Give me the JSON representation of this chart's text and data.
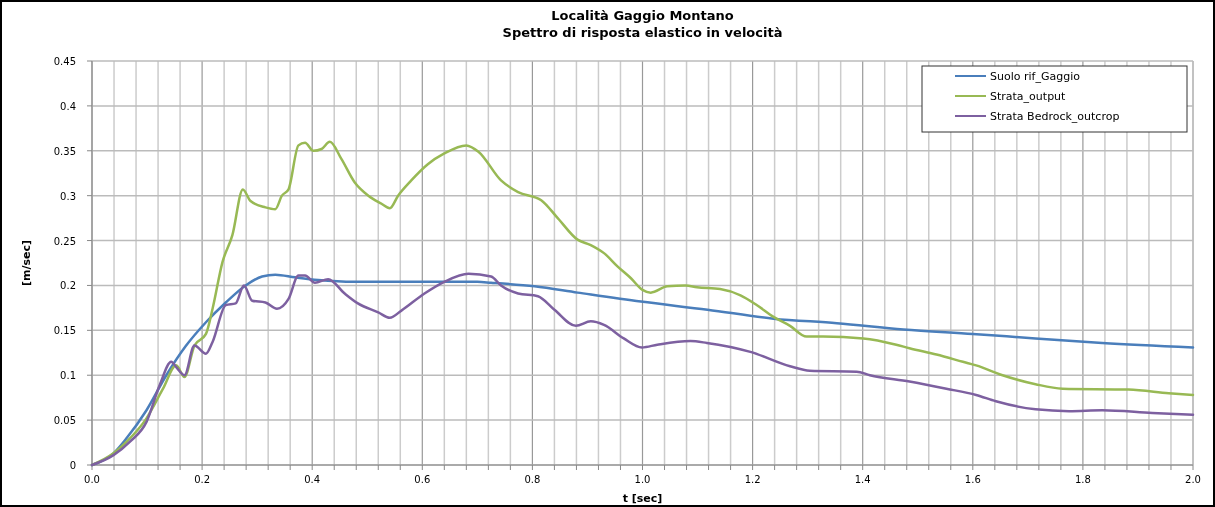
{
  "chart_data": {
    "type": "line",
    "title": "Località Gaggio Montano",
    "subtitle": "Spettro di risposta elastico in velocità",
    "xlabel": "t [sec]",
    "ylabel": "[m/sec]",
    "xlim": [
      0,
      2
    ],
    "ylim": [
      0,
      0.45
    ],
    "xticks": [
      {
        "value": 0,
        "label": "0.0"
      },
      {
        "value": 0.04,
        "label": null
      },
      {
        "value": 0.08,
        "label": null
      },
      {
        "value": 0.12,
        "label": null
      },
      {
        "value": 0.16,
        "label": null
      },
      {
        "value": 0.2,
        "label": "0.2"
      },
      {
        "value": 0.24,
        "label": null
      },
      {
        "value": 0.28,
        "label": null
      },
      {
        "value": 0.32,
        "label": null
      },
      {
        "value": 0.36,
        "label": null
      },
      {
        "value": 0.4,
        "label": "0.4"
      },
      {
        "value": 0.44,
        "label": null
      },
      {
        "value": 0.48,
        "label": null
      },
      {
        "value": 0.52,
        "label": null
      },
      {
        "value": 0.56,
        "label": null
      },
      {
        "value": 0.6,
        "label": "0.6"
      },
      {
        "value": 0.64,
        "label": null
      },
      {
        "value": 0.68,
        "label": null
      },
      {
        "value": 0.72,
        "label": null
      },
      {
        "value": 0.76,
        "label": null
      },
      {
        "value": 0.8,
        "label": "0.8"
      },
      {
        "value": 0.84,
        "label": null
      },
      {
        "value": 0.88,
        "label": null
      },
      {
        "value": 0.92,
        "label": null
      },
      {
        "value": 0.96,
        "label": null
      },
      {
        "value": 1,
        "label": "1.0"
      },
      {
        "value": 1.04,
        "label": null
      },
      {
        "value": 1.08,
        "label": null
      },
      {
        "value": 1.12,
        "label": null
      },
      {
        "value": 1.16,
        "label": null
      },
      {
        "value": 1.2,
        "label": "1.2"
      },
      {
        "value": 1.24,
        "label": null
      },
      {
        "value": 1.28,
        "label": null
      },
      {
        "value": 1.32,
        "label": null
      },
      {
        "value": 1.36,
        "label": null
      },
      {
        "value": 1.4,
        "label": "1.4"
      },
      {
        "value": 1.44,
        "label": null
      },
      {
        "value": 1.48,
        "label": null
      },
      {
        "value": 1.52,
        "label": null
      },
      {
        "value": 1.56,
        "label": null
      },
      {
        "value": 1.6,
        "label": "1.6"
      },
      {
        "value": 1.64,
        "label": null
      },
      {
        "value": 1.68,
        "label": null
      },
      {
        "value": 1.72,
        "label": null
      },
      {
        "value": 1.76,
        "label": null
      },
      {
        "value": 1.8,
        "label": "1.8"
      },
      {
        "value": 1.84,
        "label": null
      },
      {
        "value": 1.88,
        "label": null
      },
      {
        "value": 1.92,
        "label": null
      },
      {
        "value": 1.96,
        "label": null
      },
      {
        "value": 2,
        "label": "2.0"
      }
    ],
    "yticks": [
      0,
      0.05,
      0.1,
      0.15,
      0.2,
      0.25,
      0.3,
      0.35,
      0.4,
      0.45
    ],
    "grid": true,
    "legend": "top right",
    "marker": "none",
    "line_style": "solid",
    "series": [
      {
        "name": "Suolo  rif_Gaggio",
        "color": "#4a7ebb",
        "x": [
          0,
          0.039,
          0.063,
          0.099,
          0.135,
          0.171,
          0.207,
          0.243,
          0.279,
          0.309,
          0.333,
          0.369,
          0.411,
          0.477,
          0.58,
          0.7,
          0.725,
          0.804,
          0.882,
          0.997,
          1.118,
          1.238,
          1.353,
          1.474,
          1.6,
          1.714,
          1.835,
          2.0
        ],
        "values": [
          0,
          0.013,
          0.03,
          0.061,
          0.1,
          0.133,
          0.159,
          0.181,
          0.2,
          0.21,
          0.212,
          0.209,
          0.206,
          0.204,
          0.204,
          0.204,
          0.203,
          0.199,
          0.192,
          0.182,
          0.173,
          0.163,
          0.158,
          0.151,
          0.146,
          0.141,
          0.136,
          0.131
        ]
      },
      {
        "name": "Strata_output",
        "color": "#98b954",
        "x": [
          0,
          0.039,
          0.063,
          0.099,
          0.129,
          0.153,
          0.168,
          0.186,
          0.207,
          0.219,
          0.237,
          0.255,
          0.274,
          0.288,
          0.315,
          0.333,
          0.345,
          0.357,
          0.375,
          0.387,
          0.402,
          0.417,
          0.432,
          0.453,
          0.477,
          0.502,
          0.526,
          0.541,
          0.556,
          0.58,
          0.61,
          0.64,
          0.68,
          0.702,
          0.743,
          0.774,
          0.816,
          0.846,
          0.882,
          0.906,
          0.93,
          0.955,
          0.979,
          1.0,
          1.015,
          1.045,
          1.078,
          1.099,
          1.141,
          1.178,
          1.208,
          1.238,
          1.268,
          1.298,
          1.328,
          1.401,
          1.461,
          1.485,
          1.534,
          1.582,
          1.606,
          1.654,
          1.714,
          1.763,
          1.883,
          1.956,
          2.0
        ],
        "values": [
          0,
          0.013,
          0.026,
          0.052,
          0.085,
          0.111,
          0.098,
          0.133,
          0.146,
          0.174,
          0.226,
          0.256,
          0.307,
          0.294,
          0.287,
          0.285,
          0.3,
          0.307,
          0.356,
          0.359,
          0.35,
          0.352,
          0.36,
          0.341,
          0.315,
          0.3,
          0.291,
          0.286,
          0.3,
          0.317,
          0.335,
          0.347,
          0.356,
          0.349,
          0.317,
          0.304,
          0.295,
          0.275,
          0.251,
          0.245,
          0.236,
          0.221,
          0.208,
          0.195,
          0.192,
          0.199,
          0.2,
          0.198,
          0.196,
          0.189,
          0.178,
          0.165,
          0.155,
          0.143,
          0.143,
          0.141,
          0.134,
          0.13,
          0.123,
          0.115,
          0.111,
          0.1,
          0.09,
          0.085,
          0.084,
          0.08,
          0.078
        ]
      },
      {
        "name": "Strata Bedrock_outcrop",
        "color": "#7d60a0",
        "x": [
          0,
          0.039,
          0.069,
          0.099,
          0.123,
          0.144,
          0.153,
          0.168,
          0.186,
          0.207,
          0.219,
          0.243,
          0.261,
          0.276,
          0.291,
          0.315,
          0.336,
          0.357,
          0.375,
          0.387,
          0.405,
          0.429,
          0.459,
          0.483,
          0.52,
          0.541,
          0.562,
          0.604,
          0.64,
          0.684,
          0.725,
          0.743,
          0.774,
          0.81,
          0.84,
          0.879,
          0.906,
          0.93,
          0.966,
          0.999,
          1.027,
          1.087,
          1.117,
          1.196,
          1.268,
          1.304,
          1.389,
          1.413,
          1.485,
          1.552,
          1.606,
          1.642,
          1.714,
          1.775,
          1.835,
          1.926,
          2.0
        ],
        "values": [
          0,
          0.011,
          0.026,
          0.048,
          0.089,
          0.115,
          0.109,
          0.1,
          0.133,
          0.124,
          0.137,
          0.178,
          0.18,
          0.2,
          0.183,
          0.181,
          0.174,
          0.185,
          0.211,
          0.211,
          0.203,
          0.207,
          0.191,
          0.18,
          0.17,
          0.164,
          0.172,
          0.191,
          0.204,
          0.213,
          0.21,
          0.2,
          0.191,
          0.188,
          0.173,
          0.155,
          0.16,
          0.156,
          0.141,
          0.131,
          0.134,
          0.138,
          0.136,
          0.126,
          0.11,
          0.105,
          0.104,
          0.1,
          0.093,
          0.085,
          0.078,
          0.071,
          0.062,
          0.06,
          0.061,
          0.058,
          0.056
        ]
      }
    ]
  }
}
